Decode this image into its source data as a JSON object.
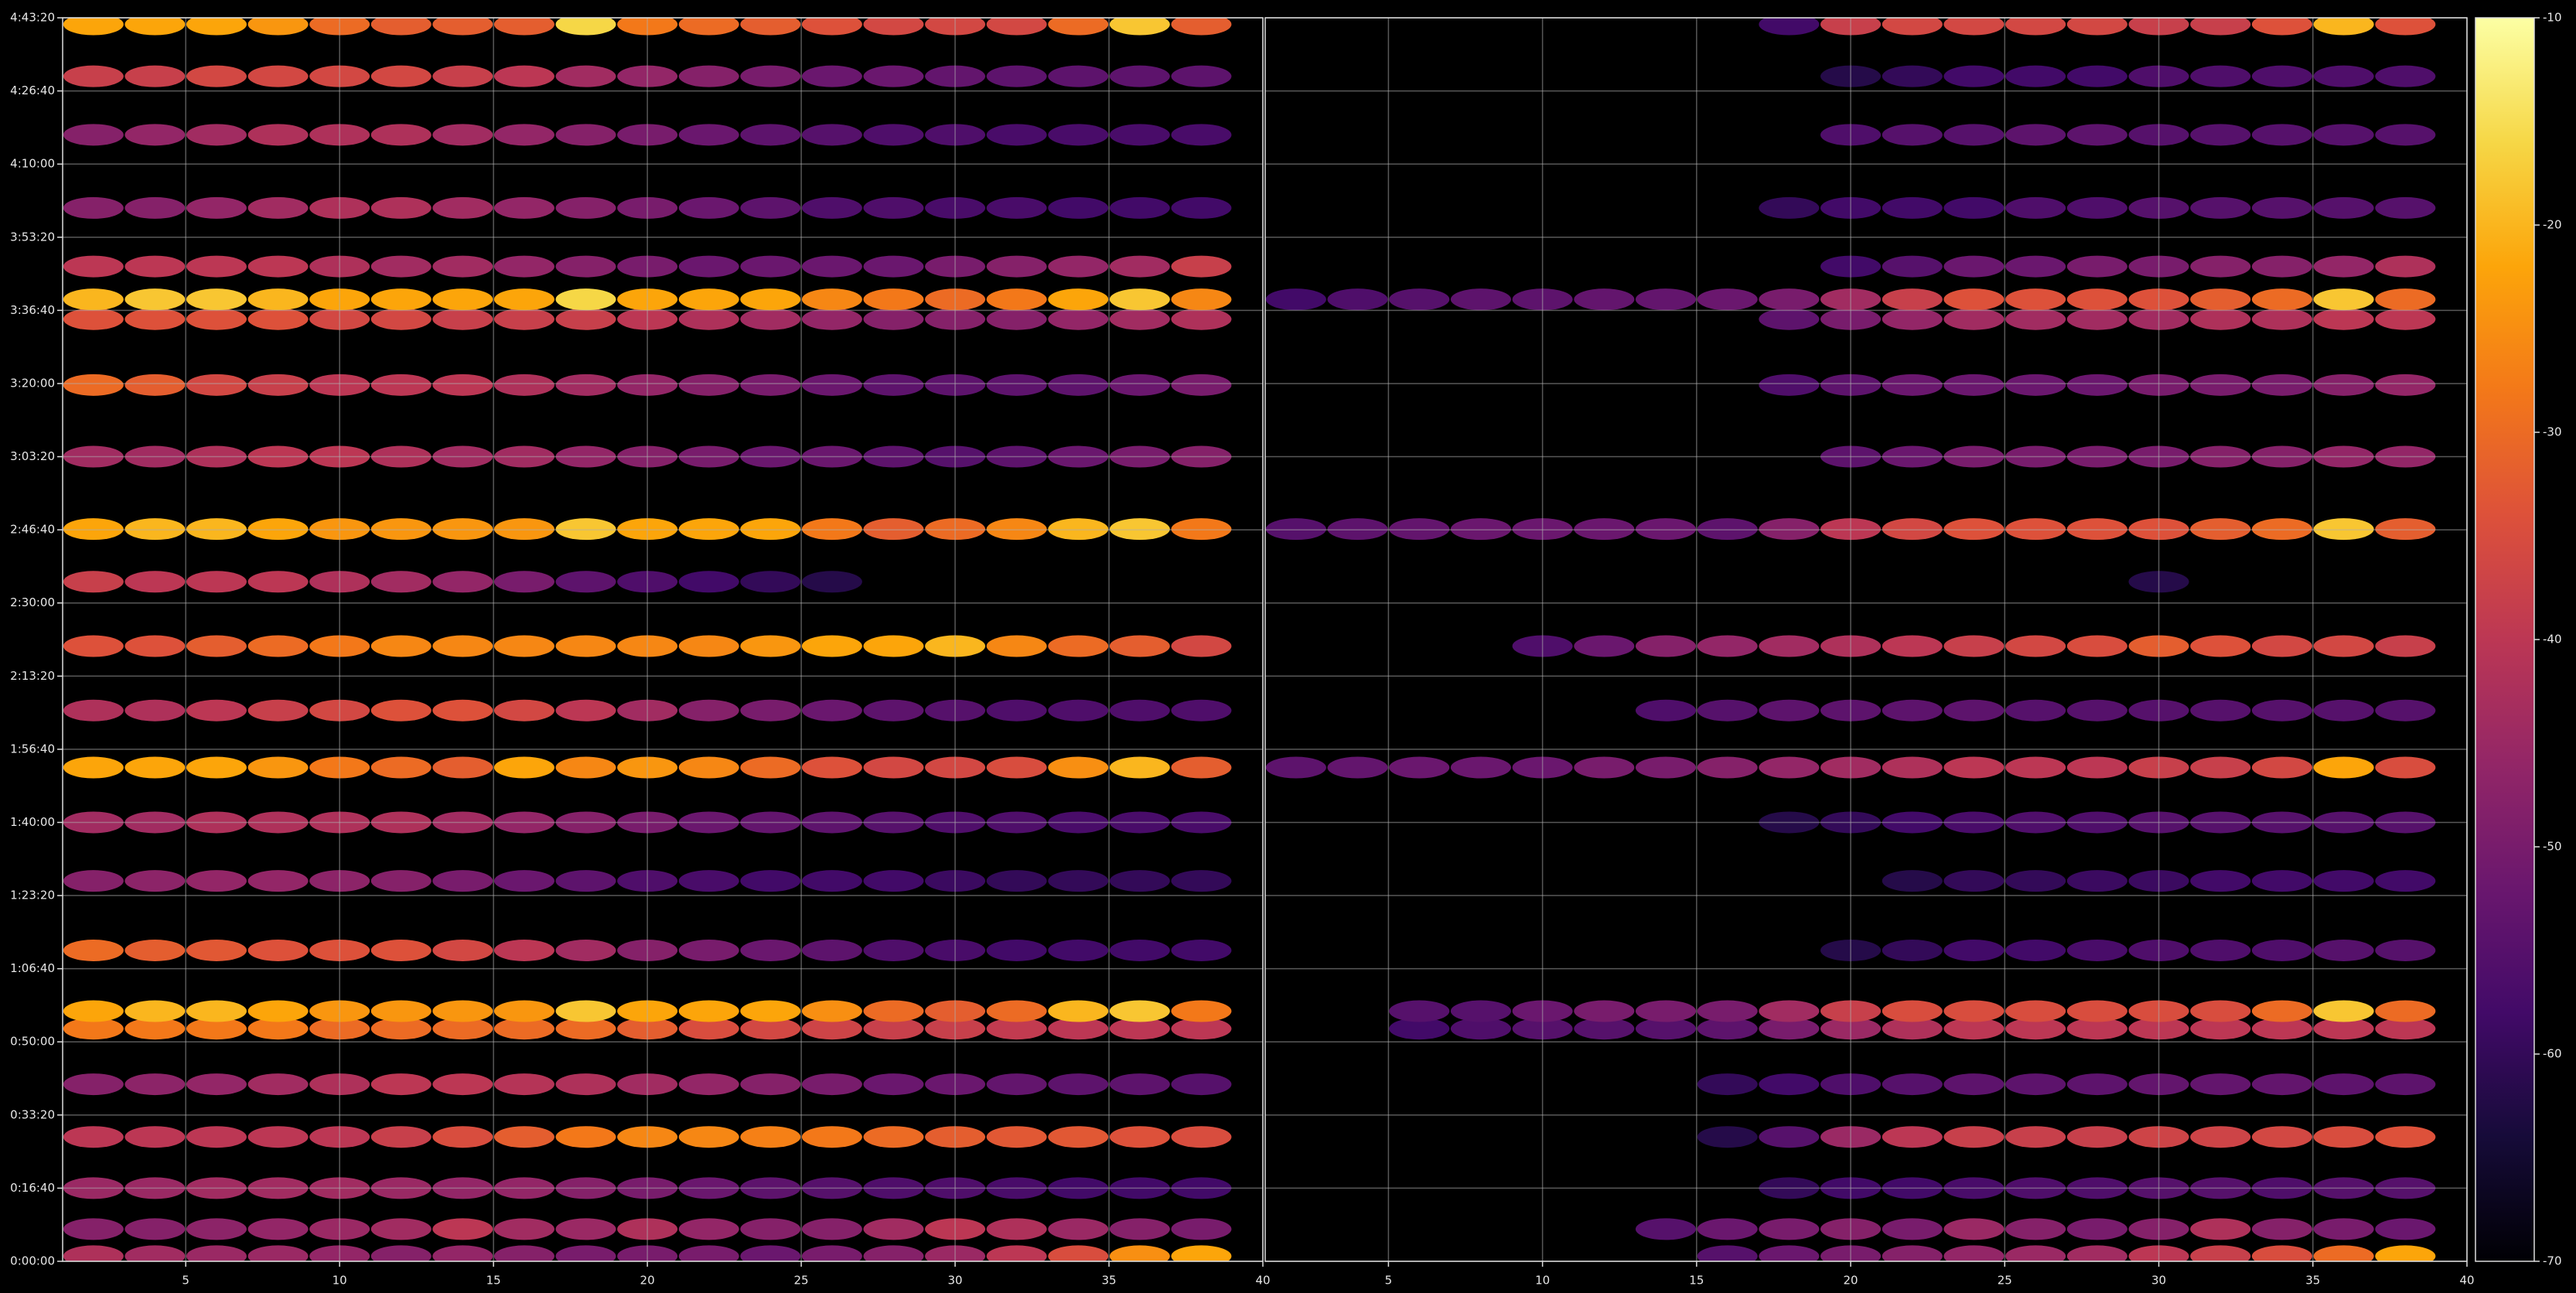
{
  "chart_data": {
    "type": "heatmap",
    "colormap": "inferno",
    "grid": true,
    "x": [
      2,
      4,
      6,
      8,
      10,
      12,
      14,
      16,
      18,
      20,
      22,
      24,
      26,
      28,
      30,
      32,
      34,
      36,
      38
    ],
    "y": [
      70,
      440,
      1000,
      1700,
      2420,
      3180,
      3420,
      4250,
      5200,
      6000,
      6750,
      7530,
      8410,
      9290,
      10010,
      11000,
      11980,
      12880,
      13150,
      13600,
      14400,
      15400,
      16200,
      16910
    ],
    "ylim": [
      0,
      17000
    ],
    "yticks": [
      {
        "value": 0,
        "label": "0:00:00"
      },
      {
        "value": 1000,
        "label": "0:16:40"
      },
      {
        "value": 2000,
        "label": "0:33:20"
      },
      {
        "value": 3000,
        "label": "0:50:00"
      },
      {
        "value": 4000,
        "label": "1:06:40"
      },
      {
        "value": 5000,
        "label": "1:23:20"
      },
      {
        "value": 6000,
        "label": "1:40:00"
      },
      {
        "value": 7000,
        "label": "1:56:40"
      },
      {
        "value": 8000,
        "label": "2:13:20"
      },
      {
        "value": 9000,
        "label": "2:30:00"
      },
      {
        "value": 10000,
        "label": "2:46:40"
      },
      {
        "value": 11000,
        "label": "3:03:20"
      },
      {
        "value": 12000,
        "label": "3:20:00"
      },
      {
        "value": 13000,
        "label": "3:36:40"
      },
      {
        "value": 14000,
        "label": "3:53:20"
      },
      {
        "value": 15000,
        "label": "4:10:00"
      },
      {
        "value": 16000,
        "label": "4:26:40"
      },
      {
        "value": 17000,
        "label": "4:43:20"
      }
    ],
    "clim": [
      -70,
      -10
    ],
    "cticks": [
      -70,
      -60,
      -50,
      -40,
      -30,
      -20,
      -10
    ],
    "panels": [
      {
        "xlim": [
          1,
          40
        ],
        "xticks": [
          5,
          10,
          15,
          20,
          25,
          30,
          35,
          40
        ],
        "values": [
          [
            -42,
            -44,
            -45,
            -45,
            -46,
            -48,
            -46,
            -48,
            -50,
            -50,
            -50,
            -52,
            -50,
            -48,
            -45,
            -40,
            -35,
            -25,
            -22
          ],
          [
            -48,
            -48,
            -47,
            -46,
            -45,
            -44,
            -40,
            -44,
            -45,
            -42,
            -46,
            -48,
            -48,
            -44,
            -40,
            -42,
            -45,
            -48,
            -50
          ],
          [
            -45,
            -45,
            -44,
            -44,
            -44,
            -45,
            -46,
            -46,
            -48,
            -50,
            -52,
            -54,
            -55,
            -56,
            -56,
            -57,
            -58,
            -58,
            -58
          ],
          [
            -40,
            -40,
            -40,
            -40,
            -40,
            -38,
            -35,
            -32,
            -28,
            -26,
            -26,
            -27,
            -28,
            -30,
            -32,
            -33,
            -33,
            -34,
            -35
          ],
          [
            -48,
            -47,
            -46,
            -44,
            -42,
            -40,
            -40,
            -41,
            -42,
            -44,
            -46,
            -48,
            -50,
            -52,
            -52,
            -53,
            -54,
            -54,
            -55
          ],
          [
            -28,
            -28,
            -28,
            -28,
            -30,
            -30,
            -30,
            -30,
            -30,
            -32,
            -35,
            -36,
            -37,
            -38,
            -38,
            -39,
            -40,
            -40,
            -40
          ],
          [
            -22,
            -20,
            -20,
            -22,
            -24,
            -24,
            -24,
            -24,
            -18,
            -22,
            -22,
            -22,
            -25,
            -30,
            -32,
            -30,
            -20,
            -18,
            -28
          ],
          [
            -30,
            -32,
            -33,
            -34,
            -34,
            -34,
            -36,
            -40,
            -44,
            -48,
            -50,
            -52,
            -54,
            -56,
            -57,
            -58,
            -58,
            -58,
            -58
          ],
          [
            -48,
            -47,
            -46,
            -46,
            -47,
            -48,
            -50,
            -52,
            -54,
            -56,
            -57,
            -58,
            -58,
            -58,
            -59,
            -60,
            -60,
            -60,
            -60
          ],
          [
            -44,
            -44,
            -42,
            -42,
            -42,
            -42,
            -44,
            -46,
            -48,
            -50,
            -52,
            -53,
            -54,
            -55,
            -56,
            -56,
            -57,
            -57,
            -57
          ],
          [
            -22,
            -22,
            -22,
            -24,
            -28,
            -30,
            -32,
            -22,
            -26,
            -24,
            -26,
            -30,
            -34,
            -36,
            -36,
            -35,
            -25,
            -20,
            -32
          ],
          [
            -42,
            -42,
            -40,
            -38,
            -36,
            -34,
            -34,
            -36,
            -40,
            -44,
            -48,
            -50,
            -52,
            -54,
            -55,
            -56,
            -56,
            -56,
            -56
          ],
          [
            -34,
            -34,
            -32,
            -30,
            -28,
            -26,
            -26,
            -26,
            -26,
            -26,
            -26,
            -24,
            -22,
            -22,
            -20,
            -26,
            -30,
            -32,
            -36
          ],
          [
            -38,
            -40,
            -40,
            -40,
            -42,
            -44,
            -46,
            -50,
            -54,
            -56,
            -58,
            -60,
            -62,
            null,
            null,
            null,
            null,
            null,
            null
          ],
          [
            -22,
            -20,
            -20,
            -22,
            -24,
            -24,
            -24,
            -24,
            -18,
            -22,
            -22,
            -22,
            -28,
            -32,
            -30,
            -26,
            -20,
            -18,
            -28
          ],
          [
            -44,
            -44,
            -42,
            -40,
            -40,
            -42,
            -44,
            -44,
            -46,
            -48,
            -50,
            -52,
            -52,
            -54,
            -55,
            -54,
            -52,
            -50,
            -48
          ],
          [
            -30,
            -32,
            -36,
            -38,
            -40,
            -40,
            -40,
            -42,
            -44,
            -46,
            -48,
            -50,
            -52,
            -54,
            -54,
            -54,
            -54,
            -52,
            -50
          ],
          [
            -34,
            -34,
            -34,
            -34,
            -36,
            -36,
            -38,
            -38,
            -38,
            -40,
            -42,
            -44,
            -46,
            -48,
            -48,
            -48,
            -46,
            -44,
            -42
          ],
          [
            -20,
            -18,
            -18,
            -20,
            -22,
            -22,
            -22,
            -22,
            -16,
            -22,
            -22,
            -22,
            -26,
            -28,
            -30,
            -28,
            -22,
            -18,
            -26
          ],
          [
            -40,
            -40,
            -40,
            -40,
            -42,
            -44,
            -44,
            -46,
            -48,
            -50,
            -52,
            -52,
            -52,
            -52,
            -50,
            -48,
            -46,
            -44,
            -38
          ],
          [
            -48,
            -48,
            -46,
            -44,
            -42,
            -42,
            -44,
            -46,
            -48,
            -50,
            -52,
            -54,
            -56,
            -56,
            -57,
            -57,
            -58,
            -58,
            -58
          ],
          [
            -48,
            -46,
            -44,
            -42,
            -42,
            -42,
            -44,
            -46,
            -48,
            -50,
            -52,
            -54,
            -55,
            -56,
            -56,
            -57,
            -57,
            -57,
            -57
          ],
          [
            -38,
            -38,
            -36,
            -36,
            -36,
            -36,
            -38,
            -40,
            -44,
            -46,
            -48,
            -50,
            -52,
            -52,
            -53,
            -54,
            -54,
            -54,
            -54
          ],
          [
            -22,
            -22,
            -22,
            -24,
            -30,
            -32,
            -32,
            -32,
            -16,
            -28,
            -30,
            -32,
            -34,
            -36,
            -36,
            -36,
            -30,
            -18,
            -32
          ]
        ]
      },
      {
        "xlim": [
          1,
          40
        ],
        "xticks": [
          5,
          10,
          15,
          20,
          25,
          30,
          35,
          40
        ],
        "values": [
          [
            null,
            null,
            null,
            null,
            null,
            null,
            null,
            -55,
            -52,
            -50,
            -48,
            -46,
            -45,
            -44,
            -40,
            -38,
            -35,
            -30,
            -22
          ],
          [
            null,
            null,
            null,
            null,
            null,
            null,
            -55,
            -52,
            -50,
            -48,
            -50,
            -45,
            -48,
            -50,
            -48,
            -42,
            -48,
            -50,
            -52
          ],
          [
            null,
            null,
            null,
            null,
            null,
            null,
            null,
            null,
            -60,
            -58,
            -58,
            -57,
            -56,
            -56,
            -55,
            -55,
            -56,
            -55,
            -55
          ],
          [
            null,
            null,
            null,
            null,
            null,
            null,
            null,
            -62,
            -55,
            -45,
            -40,
            -38,
            -38,
            -38,
            -37,
            -37,
            -36,
            -35,
            -34
          ],
          [
            null,
            null,
            null,
            null,
            null,
            null,
            null,
            -60,
            -58,
            -56,
            -55,
            -54,
            -54,
            -54,
            -53,
            -53,
            -53,
            -54,
            -54
          ],
          [
            null,
            null,
            -58,
            -56,
            -55,
            -55,
            -55,
            -54,
            -50,
            -45,
            -42,
            -40,
            -40,
            -40,
            -40,
            -40,
            -40,
            -40,
            -40
          ],
          [
            null,
            null,
            -55,
            -55,
            -52,
            -50,
            -50,
            -50,
            -44,
            -38,
            -35,
            -35,
            -35,
            -35,
            -35,
            -35,
            -30,
            -18,
            -30
          ],
          [
            null,
            null,
            null,
            null,
            null,
            null,
            null,
            null,
            null,
            -62,
            -60,
            -58,
            -58,
            -57,
            -56,
            -56,
            -56,
            -55,
            -55
          ],
          [
            null,
            null,
            null,
            null,
            null,
            null,
            null,
            null,
            null,
            null,
            -62,
            -60,
            -60,
            -59,
            -59,
            -58,
            -58,
            -58,
            -58
          ],
          [
            null,
            null,
            null,
            null,
            null,
            null,
            null,
            null,
            -62,
            -60,
            -58,
            -57,
            -56,
            -56,
            -55,
            -55,
            -55,
            -55,
            -55
          ],
          [
            -54,
            -53,
            -52,
            -52,
            -52,
            -50,
            -50,
            -48,
            -46,
            -44,
            -42,
            -40,
            -40,
            -40,
            -38,
            -38,
            -36,
            -22,
            -35
          ],
          [
            null,
            null,
            null,
            null,
            null,
            null,
            -56,
            -55,
            -54,
            -54,
            -54,
            -54,
            -55,
            -55,
            -55,
            -55,
            -55,
            -55,
            -55
          ],
          [
            null,
            null,
            null,
            null,
            -56,
            -52,
            -48,
            -46,
            -44,
            -42,
            -40,
            -38,
            -36,
            -35,
            -32,
            -34,
            -36,
            -36,
            -38
          ],
          [
            null,
            null,
            null,
            null,
            null,
            null,
            null,
            null,
            null,
            null,
            null,
            null,
            null,
            null,
            -62,
            null,
            null,
            null,
            null
          ],
          [
            -55,
            -54,
            -53,
            -52,
            -52,
            -52,
            -52,
            -54,
            -48,
            -40,
            -36,
            -34,
            -34,
            -34,
            -34,
            -32,
            -30,
            -18,
            -32
          ],
          [
            null,
            null,
            null,
            null,
            null,
            null,
            null,
            null,
            null,
            -54,
            -52,
            -50,
            -50,
            -50,
            -50,
            -48,
            -48,
            -46,
            -46
          ],
          [
            null,
            null,
            null,
            null,
            null,
            null,
            null,
            null,
            -56,
            -54,
            -52,
            -52,
            -52,
            -52,
            -50,
            -50,
            -50,
            -48,
            -46
          ],
          [
            null,
            null,
            null,
            null,
            null,
            null,
            null,
            null,
            -54,
            -50,
            -46,
            -44,
            -44,
            -44,
            -44,
            -42,
            -42,
            -40,
            -40
          ],
          [
            -58,
            -56,
            -55,
            -54,
            -54,
            -53,
            -53,
            -52,
            -50,
            -44,
            -38,
            -34,
            -34,
            -34,
            -34,
            -32,
            -30,
            -18,
            -30
          ],
          [
            null,
            null,
            null,
            null,
            null,
            null,
            null,
            null,
            null,
            -58,
            -55,
            -52,
            -52,
            -50,
            -50,
            -48,
            -48,
            -46,
            -42
          ],
          [
            null,
            null,
            null,
            null,
            null,
            null,
            null,
            null,
            -60,
            -58,
            -58,
            -58,
            -56,
            -56,
            -55,
            -55,
            -55,
            -55,
            -55
          ],
          [
            null,
            null,
            null,
            null,
            null,
            null,
            null,
            null,
            null,
            -56,
            -55,
            -55,
            -54,
            -54,
            -55,
            -55,
            -55,
            -55,
            -55
          ],
          [
            null,
            null,
            null,
            null,
            null,
            null,
            null,
            null,
            null,
            -62,
            -60,
            -58,
            -58,
            -58,
            -56,
            -56,
            -56,
            -56,
            -56
          ],
          [
            null,
            null,
            null,
            null,
            null,
            null,
            null,
            null,
            -58,
            -38,
            -36,
            -36,
            -36,
            -36,
            -38,
            -38,
            -34,
            -20,
            -34
          ]
        ]
      }
    ]
  }
}
